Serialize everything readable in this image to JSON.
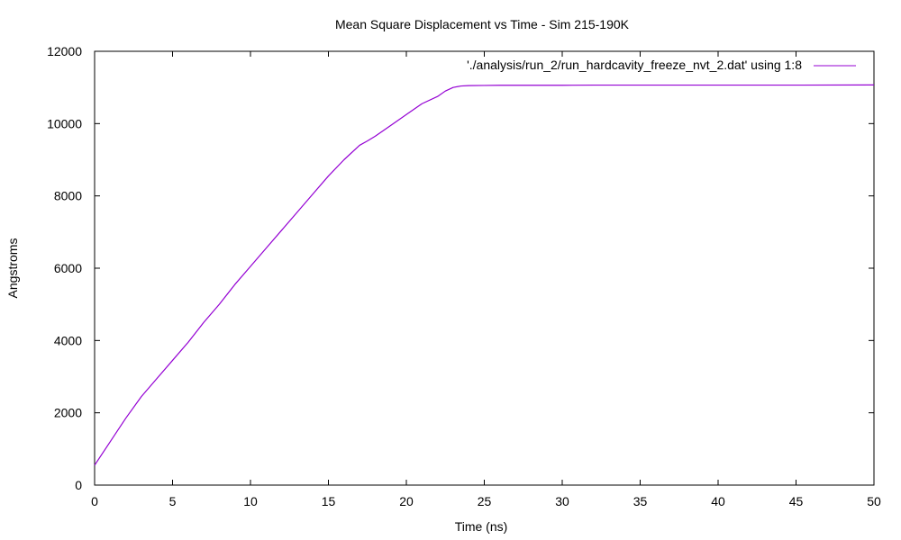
{
  "chart_data": {
    "type": "line",
    "title": "Mean Square Displacement vs Time - Sim 215-190K",
    "xlabel": "Time (ns)",
    "ylabel": "Angstroms",
    "xlim": [
      0,
      50
    ],
    "ylim": [
      0,
      12000
    ],
    "xticks": [
      0,
      5,
      10,
      15,
      20,
      25,
      30,
      35,
      40,
      45,
      50
    ],
    "yticks": [
      0,
      2000,
      4000,
      6000,
      8000,
      10000,
      12000
    ],
    "grid": false,
    "legend_position": "top-right",
    "series": [
      {
        "name": "'./analysis/run_2/run_hardcavity_freeze_nvt_2.dat' using 1:8",
        "color": "#9400d3",
        "x": [
          0,
          1,
          2,
          3,
          4,
          5,
          6,
          7,
          8,
          9,
          10,
          11,
          12,
          13,
          14,
          15,
          16,
          17,
          17.5,
          18,
          19,
          20,
          21,
          22,
          22.5,
          23,
          23.5,
          24,
          25,
          26,
          27,
          28,
          30,
          32,
          35,
          40,
          45,
          50
        ],
        "y": [
          550,
          1200,
          1850,
          2450,
          2950,
          3450,
          3950,
          4500,
          5000,
          5550,
          6050,
          6550,
          7050,
          7550,
          8050,
          8550,
          9000,
          9400,
          9520,
          9650,
          9950,
          10250,
          10550,
          10750,
          10900,
          11000,
          11040,
          11050,
          11055,
          11060,
          11060,
          11060,
          11060,
          11065,
          11065,
          11065,
          11065,
          11070
        ]
      }
    ]
  }
}
